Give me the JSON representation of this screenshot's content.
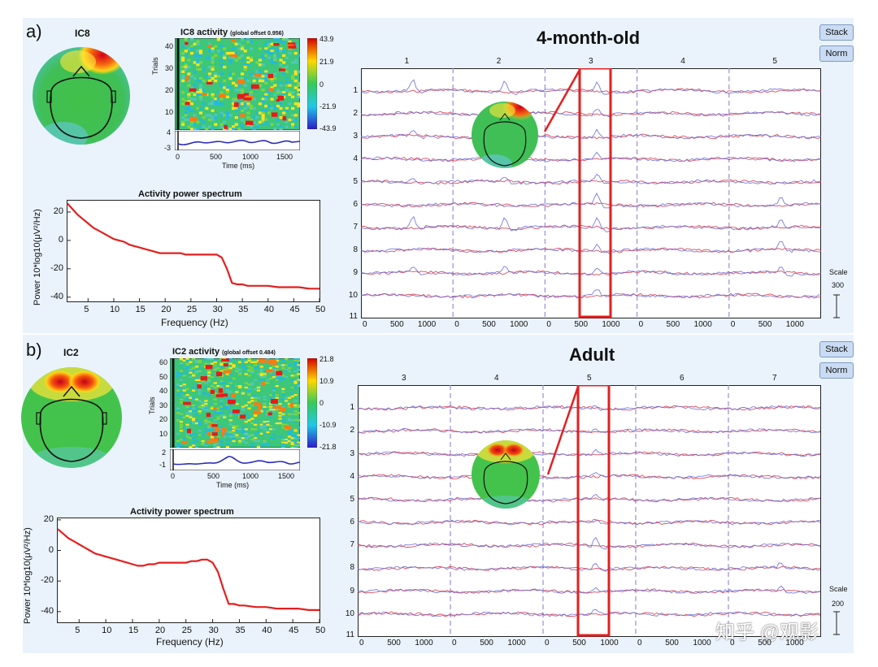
{
  "watermark": "知乎 @观影",
  "panels": [
    {
      "label": "a)",
      "ic_name": "IC8",
      "activity_title": "IC8 activity",
      "activity_subtitle": "(global offset 0.956)",
      "trials_label": "Trials",
      "trial_ticks": [
        "40",
        "30",
        "20",
        "10"
      ],
      "erp_ticks": [
        "4",
        "-3"
      ],
      "colorbar_ticks": [
        "43.9",
        "21.9",
        "0",
        "-21.9",
        "-43.9"
      ],
      "time_ticks": [
        "0",
        "500",
        "1000",
        "1500"
      ],
      "time_label": "Time (ms)",
      "spectrum_title": "Activity power spectrum",
      "spectrum_ylabel": "Power 10*log10(μV²/Hz)",
      "spectrum_xlabel": "Frequency (Hz)",
      "spectrum_yticks": [
        "20",
        "0",
        "-20",
        "-40"
      ],
      "spectrum_xticks": [
        "5",
        "10",
        "15",
        "20",
        "25",
        "30",
        "35",
        "40",
        "45",
        "50"
      ],
      "spectrum": {
        "type": "line",
        "x": [
          1,
          2,
          3,
          4,
          5,
          6,
          7,
          8,
          9,
          10,
          11,
          12,
          13,
          14,
          15,
          16,
          17,
          18,
          19,
          20,
          21,
          22,
          23,
          24,
          25,
          26,
          27,
          28,
          29,
          30,
          31,
          32,
          33,
          34,
          35,
          36,
          38,
          40,
          42,
          44,
          46,
          48,
          50
        ],
        "y": [
          26,
          22,
          18,
          15,
          12,
          9,
          7,
          5,
          3,
          1,
          0,
          -1,
          -3,
          -4,
          -5,
          -6,
          -7,
          -8,
          -9,
          -9,
          -9,
          -9,
          -9,
          -10,
          -10,
          -10,
          -10,
          -10,
          -10,
          -10,
          -12,
          -20,
          -30,
          -31,
          -31,
          -32,
          -32,
          -32,
          -33,
          -33,
          -33,
          -34,
          -34
        ],
        "xlim": [
          1,
          50
        ],
        "ylim": [
          -43,
          28
        ]
      },
      "cohort_title": "4-month-old",
      "stack_label": "Stack",
      "norm_label": "Norm",
      "epochs": [
        "1",
        "2",
        "3",
        "4",
        "5"
      ],
      "channels": [
        "1",
        "2",
        "3",
        "4",
        "5",
        "6",
        "7",
        "8",
        "9",
        "10",
        "11"
      ],
      "epoch_time_ticks": [
        "0",
        "500",
        "1000"
      ],
      "scale_label": "Scale",
      "scale_value": "300",
      "highlight_epoch": 3
    },
    {
      "label": "b)",
      "ic_name": "IC2",
      "activity_title": "IC2 activity",
      "activity_subtitle": "(global offset 0.484)",
      "trials_label": "Trials",
      "trial_ticks": [
        "60",
        "50",
        "40",
        "30",
        "20",
        "10"
      ],
      "erp_ticks": [
        "2",
        "-1"
      ],
      "colorbar_ticks": [
        "21.8",
        "10.9",
        "0",
        "-10.9",
        "-21.8"
      ],
      "time_ticks": [
        "0",
        "500",
        "1000",
        "1500"
      ],
      "time_label": "Time (ms)",
      "spectrum_title": "Activity power spectrum",
      "spectrum_ylabel": "Power 10*log10(μV²/Hz)",
      "spectrum_xlabel": "Frequency (Hz)",
      "spectrum_yticks": [
        "20",
        "0",
        "-20",
        "-40"
      ],
      "spectrum_xticks": [
        "5",
        "10",
        "15",
        "20",
        "25",
        "30",
        "35",
        "40",
        "45",
        "50"
      ],
      "spectrum": {
        "type": "line",
        "x": [
          1,
          2,
          3,
          4,
          5,
          6,
          7,
          8,
          9,
          10,
          11,
          12,
          13,
          14,
          15,
          16,
          17,
          18,
          19,
          20,
          21,
          22,
          23,
          24,
          25,
          26,
          27,
          28,
          29,
          30,
          31,
          32,
          33,
          34,
          35,
          36,
          38,
          40,
          42,
          44,
          46,
          48,
          50
        ],
        "y": [
          14,
          11,
          8,
          6,
          4,
          2,
          0,
          -2,
          -3,
          -4,
          -5,
          -6,
          -7,
          -8,
          -9,
          -10,
          -10,
          -9,
          -9,
          -8,
          -8,
          -8,
          -8,
          -8,
          -8,
          -7,
          -7,
          -6,
          -6,
          -8,
          -14,
          -25,
          -35,
          -35,
          -36,
          -36,
          -37,
          -37,
          -38,
          -38,
          -38,
          -39,
          -39
        ],
        "xlim": [
          1,
          50
        ],
        "ylim": [
          -47,
          21
        ]
      },
      "cohort_title": "Adult",
      "stack_label": "Stack",
      "norm_label": "Norm",
      "epochs": [
        "3",
        "4",
        "5",
        "6",
        "7"
      ],
      "channels": [
        "1",
        "2",
        "3",
        "4",
        "5",
        "6",
        "7",
        "8",
        "9",
        "10",
        "11"
      ],
      "epoch_time_ticks": [
        "0",
        "500",
        "1000"
      ],
      "scale_label": "Scale",
      "scale_value": "200",
      "highlight_epoch": 3
    }
  ],
  "colors": {
    "spectrum_line": "#e41f1f",
    "highlight_box": "#e41f1f",
    "trace_red": "#d93a4a",
    "trace_blue": "#6a6fd8",
    "epoch_divider": "#9a8cd8",
    "panel_bg": "#eaf3fb"
  }
}
